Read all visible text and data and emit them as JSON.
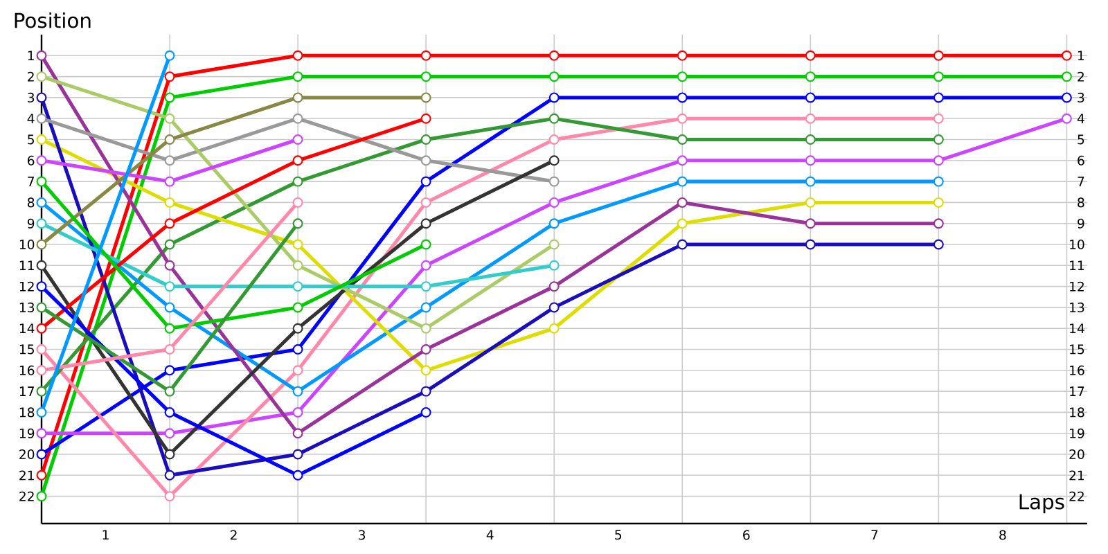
{
  "chart_data": {
    "type": "line",
    "xlabel": "Laps",
    "ylabel": "Position",
    "x": [
      0,
      1,
      2,
      3,
      4,
      5,
      6,
      7,
      8
    ],
    "xlim": [
      0,
      8.16
    ],
    "xticks": [
      {
        "value": 0,
        "label": null
      },
      {
        "value": 0.5,
        "label": "1"
      },
      {
        "value": 1,
        "label": null
      },
      {
        "value": 1.5,
        "label": "2"
      },
      {
        "value": 2,
        "label": null
      },
      {
        "value": 2.5,
        "label": "3"
      },
      {
        "value": 3,
        "label": null
      },
      {
        "value": 3.5,
        "label": "4"
      },
      {
        "value": 4,
        "label": null
      },
      {
        "value": 4.5,
        "label": "5"
      },
      {
        "value": 5,
        "label": null
      },
      {
        "value": 5.5,
        "label": "6"
      },
      {
        "value": 6,
        "label": null
      },
      {
        "value": 6.5,
        "label": "7"
      },
      {
        "value": 7,
        "label": null
      },
      {
        "value": 7.5,
        "label": "8"
      },
      {
        "value": 8,
        "label": null
      }
    ],
    "ylim": [
      23.3,
      0
    ],
    "yticks": [
      1,
      2,
      3,
      4,
      5,
      6,
      7,
      8,
      9,
      10,
      11,
      12,
      13,
      14,
      15,
      16,
      17,
      18,
      19,
      20,
      21,
      22
    ],
    "y2lim": [
      23.3,
      0
    ],
    "y2ticks": [
      1,
      2,
      3,
      4,
      5,
      6,
      7,
      8,
      9,
      10,
      11,
      12,
      13,
      14,
      15,
      16,
      17,
      18,
      19,
      20,
      21,
      22
    ],
    "grid": true,
    "marker": "circle",
    "line_style": "solid",
    "series": [
      {
        "color": "#ff0000",
        "values": [
          21,
          2,
          1,
          1,
          1,
          1,
          1,
          1,
          1
        ]
      },
      {
        "color": "#00cc00",
        "values": [
          22,
          3,
          2,
          2,
          2,
          2,
          2,
          2,
          2
        ]
      },
      {
        "color": "#0000ff",
        "values": [
          20,
          16,
          15,
          7,
          3,
          3,
          3,
          3,
          3
        ]
      },
      {
        "color": "#cc44ff",
        "values": [
          19,
          19,
          18,
          11,
          8,
          6,
          6,
          6,
          4
        ]
      },
      {
        "color": "#ff88aa",
        "values": [
          15,
          22,
          16,
          8,
          5,
          4,
          4,
          4,
          null
        ]
      },
      {
        "color": "#339933",
        "values": [
          17,
          10,
          7,
          5,
          4,
          5,
          5,
          5,
          null
        ]
      },
      {
        "color": "#0099ff",
        "values": [
          8,
          13,
          17,
          13,
          9,
          7,
          7,
          7,
          null
        ]
      },
      {
        "color": "#dddd00",
        "values": [
          5,
          8,
          10,
          16,
          14,
          9,
          8,
          8,
          null
        ]
      },
      {
        "color": "#993399",
        "values": [
          1,
          11,
          19,
          15,
          12,
          8,
          9,
          9,
          null
        ]
      },
      {
        "color": "#1a0dbb",
        "values": [
          3,
          21,
          20,
          17,
          13,
          10,
          10,
          10,
          null
        ]
      },
      {
        "color": "#999999",
        "values": [
          4,
          6,
          4,
          6,
          7,
          null,
          null,
          null,
          null
        ]
      },
      {
        "color": "#333333",
        "values": [
          11,
          20,
          14,
          9,
          6,
          null,
          null,
          null,
          null
        ]
      },
      {
        "color": "#aacc66",
        "values": [
          2,
          4,
          11,
          14,
          10,
          null,
          null,
          null,
          null
        ]
      },
      {
        "color": "#33cccc",
        "values": [
          9,
          12,
          12,
          12,
          11,
          null,
          null,
          null,
          null
        ]
      },
      {
        "color": "#ff0000",
        "values": [
          14,
          9,
          6,
          4,
          null,
          null,
          null,
          null,
          null
        ]
      },
      {
        "color": "#888844",
        "values": [
          10,
          5,
          3,
          3,
          null,
          null,
          null,
          null,
          null
        ]
      },
      {
        "color": "#00cc00",
        "values": [
          7,
          14,
          13,
          10,
          null,
          null,
          null,
          null,
          null
        ]
      },
      {
        "color": "#0000ff",
        "values": [
          12,
          18,
          21,
          18,
          null,
          null,
          null,
          null,
          null
        ]
      },
      {
        "color": "#339933",
        "values": [
          13,
          17,
          9,
          null,
          null,
          null,
          null,
          null,
          null
        ]
      },
      {
        "color": "#cc44ff",
        "values": [
          6,
          7,
          5,
          null,
          null,
          null,
          null,
          null,
          null
        ]
      },
      {
        "color": "#ff88aa",
        "values": [
          16,
          15,
          8,
          null,
          null,
          null,
          null,
          null,
          null
        ]
      },
      {
        "color": "#0099ff",
        "values": [
          18,
          1,
          null,
          null,
          null,
          null,
          null,
          null,
          null
        ]
      }
    ]
  }
}
